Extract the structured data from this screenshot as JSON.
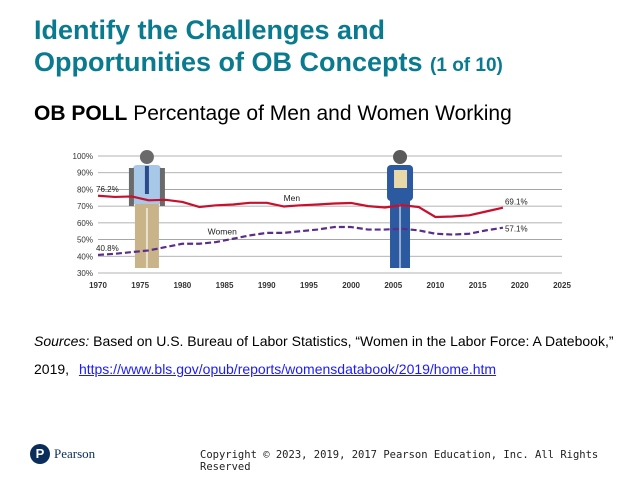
{
  "slide": {
    "title_line1": "Identify the Challenges and",
    "title_line2": "Opportunities of OB Concepts",
    "title_counter": "(1 of 10)",
    "subtitle_bold": "OB POLL",
    "subtitle_rest": "Percentage of Men and Women Working",
    "sources_label": "Sources:",
    "sources_text": "Based on U.S. Bureau of Labor Statistics, “Women in the Labor Force: A Datebook,” 2019,",
    "sources_link": "https://www.bls.gov/opub/reports/womensdatabook/2019/home.htm",
    "brand": "Pearson",
    "brand_mark": "P",
    "copyright": "Copyright © 2023, 2019, 2017 Pearson Education, Inc. All Rights Reserved"
  },
  "colors": {
    "title": "#0a7a8f",
    "men_line": "#c8102e",
    "women_line": "#5b2c8a",
    "grid": "#9a9a9a",
    "link": "#1a1aff"
  },
  "chart_data": {
    "type": "line",
    "title": "",
    "xlabel": "",
    "ylabel": "",
    "xlim": [
      1970,
      2025
    ],
    "ylim": [
      30,
      100
    ],
    "x_ticks": [
      1970,
      1975,
      1980,
      1985,
      1990,
      1995,
      2000,
      2005,
      2010,
      2015,
      2020,
      2025
    ],
    "y_ticks": [
      "30%",
      "40%",
      "50%",
      "60%",
      "70%",
      "80%",
      "90%",
      "100%"
    ],
    "grid": true,
    "series": [
      {
        "name": "Men",
        "style": "solid",
        "x": [
          1970,
          1972,
          1974,
          1976,
          1978,
          1980,
          1982,
          1984,
          1986,
          1988,
          1990,
          1992,
          1994,
          1996,
          1998,
          2000,
          2002,
          2004,
          2006,
          2008,
          2010,
          2012,
          2014,
          2016,
          2018
        ],
        "values": [
          76.2,
          75.5,
          75.8,
          73.5,
          73.8,
          72.5,
          69.5,
          70.5,
          71.0,
          72.0,
          72.0,
          69.8,
          70.5,
          71.0,
          71.6,
          71.9,
          70.0,
          69.2,
          70.6,
          69.5,
          63.5,
          63.8,
          64.5,
          66.8,
          69.1
        ],
        "start_label": "76.2%",
        "end_label": "69.1%"
      },
      {
        "name": "Women",
        "style": "dashed",
        "x": [
          1970,
          1972,
          1974,
          1976,
          1978,
          1980,
          1982,
          1984,
          1986,
          1988,
          1990,
          1992,
          1994,
          1996,
          1998,
          2000,
          2002,
          2004,
          2006,
          2008,
          2010,
          2012,
          2014,
          2016,
          2018
        ],
        "values": [
          40.8,
          41.5,
          42.5,
          43.5,
          45.5,
          47.5,
          47.5,
          48.5,
          50.5,
          52.5,
          54.0,
          54.0,
          55.0,
          56.0,
          57.5,
          57.5,
          56.0,
          56.0,
          56.5,
          55.5,
          53.5,
          53.0,
          53.5,
          55.5,
          57.1
        ],
        "start_label": "40.8%",
        "end_label": "57.1%"
      }
    ]
  }
}
